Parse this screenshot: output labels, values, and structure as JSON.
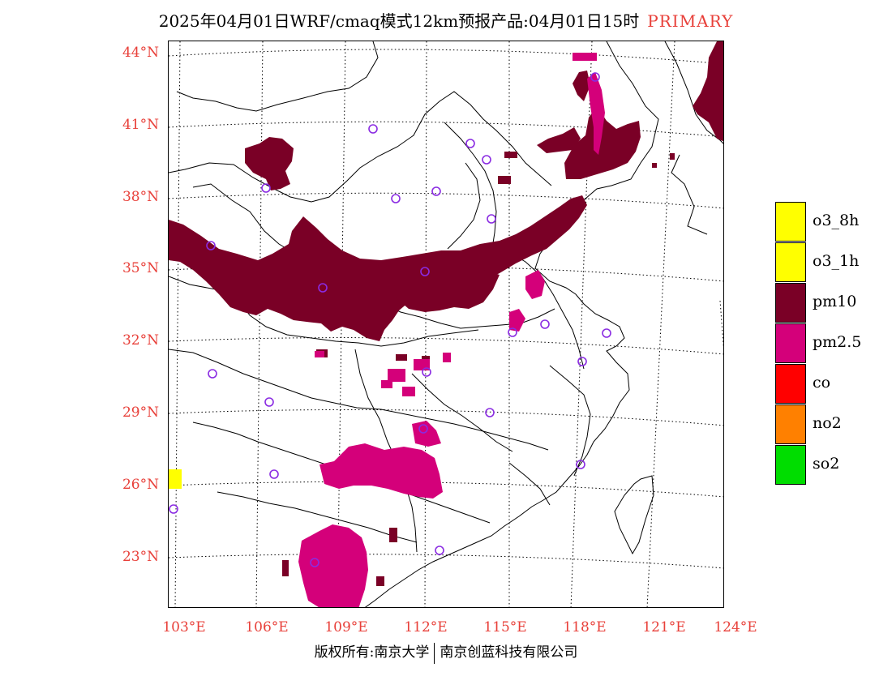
{
  "title": {
    "main": "2025年04月01日WRF/cmaq模式12km预报产品:04月01日15时",
    "tag": "PRIMARY"
  },
  "axes": {
    "lat_labels": [
      "44°N",
      "41°N",
      "38°N",
      "35°N",
      "32°N",
      "29°N",
      "26°N",
      "23°N"
    ],
    "lon_labels": [
      "103°E",
      "106°E",
      "109°E",
      "112°E",
      "115°E",
      "118°E",
      "121°E",
      "124°E"
    ]
  },
  "legend": [
    {
      "label": "o3_8h",
      "color": "#ffff00"
    },
    {
      "label": "o3_1h",
      "color": "#ffff00"
    },
    {
      "label": "pm10",
      "color": "#7a0026"
    },
    {
      "label": "pm2.5",
      "color": "#d4007a"
    },
    {
      "label": "co",
      "color": "#ff0000"
    },
    {
      "label": "no2",
      "color": "#ff8000"
    },
    {
      "label": "so2",
      "color": "#00dd00"
    }
  ],
  "colors": {
    "label_red": "#e8403a",
    "station_marker": "#8a2be2"
  },
  "footer": {
    "left": "版权所有:南京大学",
    "right": "南京创蓝科技有限公司"
  }
}
